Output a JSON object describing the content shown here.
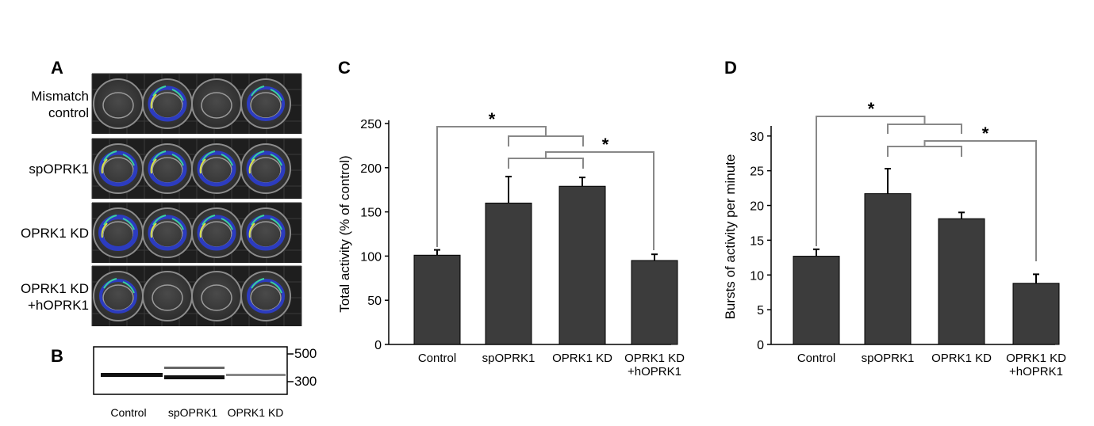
{
  "panels": {
    "A": {
      "letter": "A",
      "row_labels": [
        [
          "Mismatch",
          "control"
        ],
        [
          "spOPRK1"
        ],
        [
          "OPRK1 KD"
        ],
        [
          "OPRK1 KD",
          "+hOPRK1"
        ]
      ]
    },
    "B": {
      "letter": "B",
      "markers": [
        "500",
        "300"
      ],
      "lanes": [
        "Control",
        "spOPRK1",
        "OPRK1 KD"
      ]
    },
    "C": {
      "letter": "C"
    },
    "D": {
      "letter": "D"
    }
  },
  "chart_data": [
    {
      "id": "C",
      "type": "bar",
      "categories": [
        [
          "Control"
        ],
        [
          "spOPRK1"
        ],
        [
          "OPRK1 KD"
        ],
        [
          "OPRK1 KD",
          "+hOPRK1"
        ]
      ],
      "values": [
        101,
        160,
        179,
        95
      ],
      "errors": [
        6,
        30,
        10,
        7
      ],
      "ylabel": "Total activity (% of control)",
      "ylim": [
        0,
        250
      ],
      "yticks": [
        0,
        50,
        100,
        150,
        200,
        250
      ],
      "bar_color": "#3c3c3c",
      "bracket_color": "#888888",
      "significance_marker": "*"
    },
    {
      "id": "D",
      "type": "bar",
      "categories": [
        [
          "Control"
        ],
        [
          "spOPRK1"
        ],
        [
          "OPRK1 KD"
        ],
        [
          "OPRK1 KD",
          "+hOPRK1"
        ]
      ],
      "values": [
        12.7,
        21.7,
        18.1,
        8.8
      ],
      "errors": [
        1.0,
        3.6,
        0.9,
        1.3
      ],
      "ylabel": "Bursts of activity per minute",
      "ylim": [
        0,
        31
      ],
      "yticks": [
        0,
        5,
        10,
        15,
        20,
        25,
        30
      ],
      "bar_color": "#3c3c3c",
      "bracket_color": "#888888",
      "significance_marker": "*"
    }
  ]
}
